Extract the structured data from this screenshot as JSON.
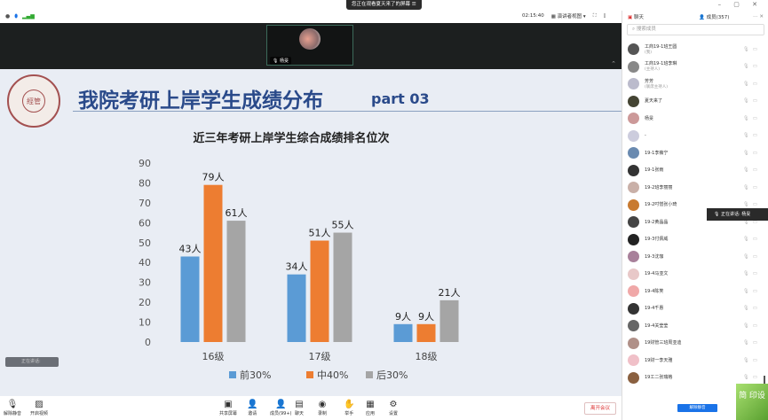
{
  "window": {
    "banner": "您正在观看夏天来了的屏幕",
    "banner_menu": "☰",
    "controls": "– ▢ ✕"
  },
  "toolbar": {
    "timer": "02:15:40",
    "view": "演讲者视图",
    "view_caret": "▾",
    "fullscreen": "⛶"
  },
  "video": {
    "name": "杨旻"
  },
  "slide": {
    "title": "我院考研上岸学生成绩分布",
    "part": "part 03",
    "logo_text": "經管",
    "speaking": "正在讲话:"
  },
  "chart_data": {
    "type": "bar",
    "title": "近三年考研上岸学生综合成绩排名位次",
    "categories": [
      "16级",
      "17级",
      "18级"
    ],
    "series": [
      {
        "name": "前30%",
        "values": [
          43,
          34,
          9
        ],
        "labels": [
          "43人",
          "34人",
          "9人"
        ],
        "color": "#5b9bd5"
      },
      {
        "name": "中40%",
        "values": [
          79,
          51,
          9
        ],
        "labels": [
          "79人",
          "51人",
          "9人"
        ],
        "color": "#ed7d31"
      },
      {
        "name": "后30%",
        "values": [
          61,
          55,
          21
        ],
        "labels": [
          "61人",
          "55人",
          "21人"
        ],
        "color": "#a5a5a5"
      }
    ],
    "yticks": [
      0,
      10,
      20,
      30,
      40,
      50,
      60,
      70,
      80,
      90
    ],
    "ylim": [
      0,
      90
    ],
    "grid": false,
    "legend": "bottom"
  },
  "bottombar": {
    "buttons": [
      {
        "label": "解除静音",
        "icon": "🎙"
      },
      {
        "label": "开启视频",
        "icon": "▨"
      },
      {
        "label": "共享屏幕",
        "icon": "▣"
      },
      {
        "label": "邀请",
        "icon": "👤"
      },
      {
        "label": "成员(99+)",
        "icon": "👤"
      },
      {
        "label": "聊天",
        "icon": "▤"
      },
      {
        "label": "录制",
        "icon": "◉"
      },
      {
        "label": "举手",
        "icon": "✋"
      },
      {
        "label": "应用",
        "icon": "▦"
      },
      {
        "label": "设置",
        "icon": "⚙"
      }
    ],
    "leave": "离开会议"
  },
  "panel": {
    "chat_tab": "聊天",
    "members_tab": "成员(357)",
    "search_placeholder": "搜索成员",
    "talking_tip": "正在讲话: 杨旻",
    "unmute_all": "解除静音",
    "watermark": "简 印设",
    "members": [
      {
        "name": "工商19-1班王圆",
        "sub": "(我)",
        "color": "#555"
      },
      {
        "name": "工商19-1班李琳",
        "sub": "(主持人)",
        "color": "#888"
      },
      {
        "name": "芳芳",
        "sub": "(联席主持人)",
        "color": "#bbc"
      },
      {
        "name": "夏天来了",
        "sub": "",
        "color": "#443"
      },
      {
        "name": "杨旻",
        "sub": "",
        "color": "#c99"
      },
      {
        "name": "-",
        "sub": "",
        "color": "#ccd"
      },
      {
        "name": "19-1李薇宁",
        "sub": "",
        "color": "#6a8ab0"
      },
      {
        "name": "19-1张雨",
        "sub": "",
        "color": "#333"
      },
      {
        "name": "19-2班李丽丽",
        "sub": "",
        "color": "#c9b0a8"
      },
      {
        "name": "19-2吋憎张小琦",
        "sub": "",
        "color": "#c87a30"
      },
      {
        "name": "19-2黄晶晶",
        "sub": "",
        "color": "#444"
      },
      {
        "name": "19-3付佩威",
        "sub": "",
        "color": "#222"
      },
      {
        "name": "19-3沈珈",
        "sub": "",
        "color": "#a8809a"
      },
      {
        "name": "19-4马亚文",
        "sub": "",
        "color": "#e8c8c8"
      },
      {
        "name": "19-4陈笑",
        "sub": "",
        "color": "#f0a8a8"
      },
      {
        "name": "19-4千惠",
        "sub": "",
        "color": "#333"
      },
      {
        "name": "19-4关莹莹",
        "sub": "",
        "color": "#666"
      },
      {
        "name": "19财管三班周亚迪",
        "sub": "",
        "color": "#b09088"
      },
      {
        "name": "19财一李天雅",
        "sub": "",
        "color": "#f0c0c8"
      },
      {
        "name": "19工二张瑞格",
        "sub": "",
        "color": "#8a6040"
      }
    ]
  }
}
